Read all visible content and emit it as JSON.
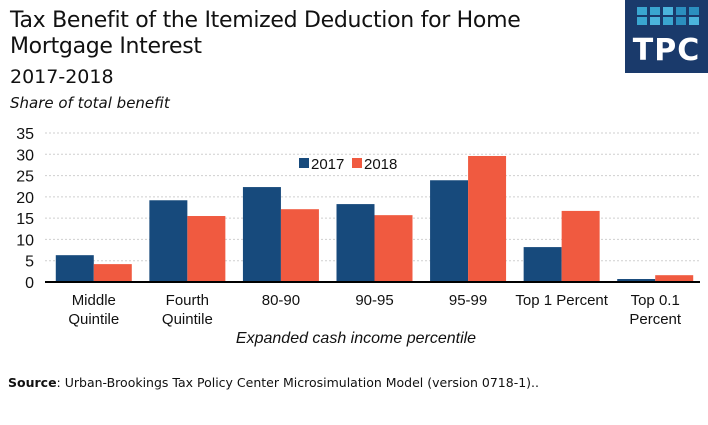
{
  "header": {
    "title": "Tax Benefit of the Itemized Deduction for Home Mortgage Interest",
    "subtitle": "2017-2018",
    "unit_label": "Share of total benefit"
  },
  "logo": {
    "text": "TPC",
    "bg_color": "#1a3a6b"
  },
  "source": {
    "label": "Source",
    "text": ": Urban-Brookings Tax Policy Center Microsimulation Model (version 0718-1).."
  },
  "chart_data": {
    "type": "bar",
    "title": "Tax Benefit of the Itemized Deduction for Home Mortgage Interest",
    "subtitle": "2017-2018",
    "ylabel": "Share of total benefit",
    "xlabel": "Expanded cash income percentile",
    "categories": [
      [
        "Middle",
        "Quintile"
      ],
      [
        "Fourth",
        "Quintile"
      ],
      [
        "80-90"
      ],
      [
        "90-95"
      ],
      [
        "95-99"
      ],
      [
        "Top 1 Percent"
      ],
      [
        "Top 0.1",
        "Percent"
      ]
    ],
    "series": [
      {
        "name": "2017",
        "color": "#174a7c",
        "values": [
          6.3,
          19.2,
          22.3,
          18.3,
          23.9,
          8.2,
          0.7
        ]
      },
      {
        "name": "2018",
        "color": "#f05a40",
        "values": [
          4.2,
          15.5,
          17.1,
          15.7,
          29.6,
          16.7,
          1.6
        ]
      }
    ],
    "ylim": [
      0,
      35
    ],
    "yticks": [
      0,
      5,
      10,
      15,
      20,
      25,
      30,
      35
    ],
    "grid": true,
    "legend_position": "top-center"
  }
}
